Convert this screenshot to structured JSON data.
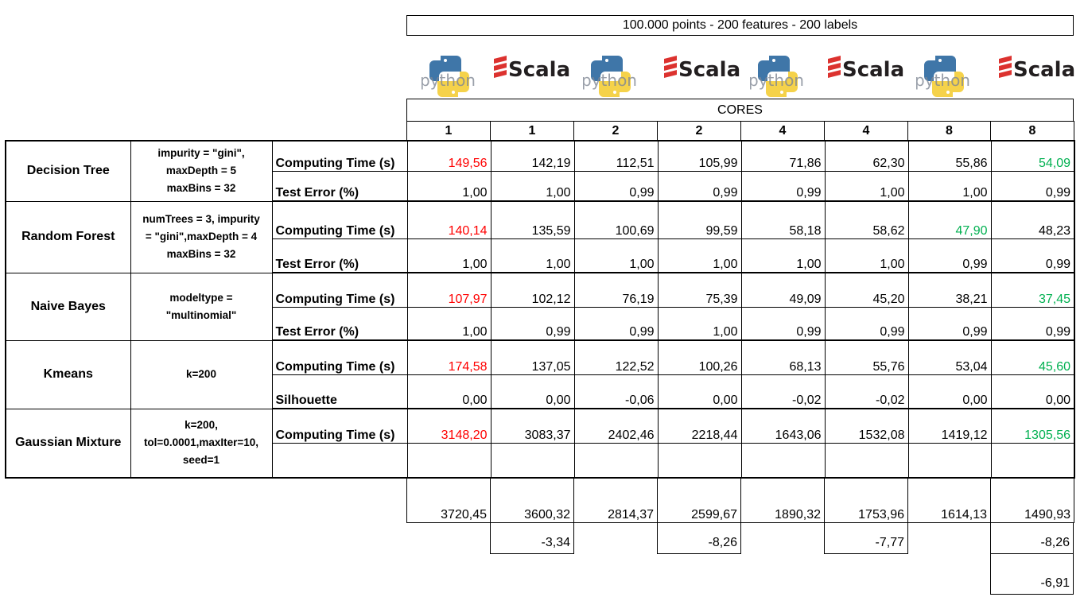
{
  "title": "100.000 points - 200 features - 200 labels",
  "logos": [
    {
      "icon": "python-logo",
      "text": "python"
    },
    {
      "icon": "scala-logo",
      "text": "Scala"
    },
    {
      "icon": "python-logo",
      "text": "python"
    },
    {
      "icon": "scala-logo",
      "text": "Scala"
    },
    {
      "icon": "python-logo",
      "text": "python"
    },
    {
      "icon": "scala-logo",
      "text": "Scala"
    },
    {
      "icon": "python-logo",
      "text": "python"
    },
    {
      "icon": "scala-logo",
      "text": "Scala"
    }
  ],
  "cores_label": "CORES",
  "cores": [
    "1",
    "1",
    "2",
    "2",
    "4",
    "4",
    "8",
    "8"
  ],
  "colors": {
    "slowest": "#ff0000",
    "fastest": "#00b050"
  },
  "algorithms": [
    {
      "name": "Decision Tree",
      "params": [
        "impurity = \"gini\",",
        "maxDepth = 5",
        "maxBins = 32"
      ],
      "rows": [
        {
          "metric": "Computing Time (s)",
          "values": [
            "149,56",
            "142,19",
            "112,51",
            "105,99",
            "71,86",
            "62,30",
            "55,86",
            "54,09"
          ],
          "red": 0,
          "green": 7
        },
        {
          "metric": "Test Error (%)",
          "values": [
            "1,00",
            "1,00",
            "0,99",
            "0,99",
            "0,99",
            "1,00",
            "1,00",
            "0,99"
          ]
        }
      ]
    },
    {
      "name": "Random Forest",
      "params": [
        "numTrees = 3, impurity",
        "= \"gini\",maxDepth = 4",
        "maxBins = 32"
      ],
      "rows": [
        {
          "metric": "Computing Time (s)",
          "values": [
            "140,14",
            "135,59",
            "100,69",
            "99,59",
            "58,18",
            "58,62",
            "47,90",
            "48,23"
          ],
          "red": 0,
          "green": 6
        },
        {
          "metric": "Test Error (%)",
          "values": [
            "1,00",
            "1,00",
            "1,00",
            "1,00",
            "1,00",
            "1,00",
            "0,99",
            "0,99"
          ]
        }
      ]
    },
    {
      "name": "Naive Bayes",
      "params": [
        "modeltype =",
        "\"multinomial\""
      ],
      "rows": [
        {
          "metric": "Computing Time (s)",
          "values": [
            "107,97",
            "102,12",
            "76,19",
            "75,39",
            "49,09",
            "45,20",
            "38,21",
            "37,45"
          ],
          "red": 0,
          "green": 7
        },
        {
          "metric": "Test Error (%)",
          "values": [
            "1,00",
            "0,99",
            "0,99",
            "1,00",
            "0,99",
            "0,99",
            "0,99",
            "0,99"
          ]
        }
      ]
    },
    {
      "name": "Kmeans",
      "params": [
        "k=200"
      ],
      "rows": [
        {
          "metric": "Computing Time (s)",
          "values": [
            "174,58",
            "137,05",
            "122,52",
            "100,26",
            "68,13",
            "55,76",
            "53,04",
            "45,60"
          ],
          "red": 0,
          "green": 7
        },
        {
          "metric": "Silhouette",
          "values": [
            "0,00",
            "0,00",
            "-0,06",
            "0,00",
            "-0,02",
            "-0,02",
            "0,00",
            "0,00"
          ]
        }
      ]
    },
    {
      "name": "Gaussian Mixture",
      "params": [
        "k=200,",
        "tol=0.0001,maxIter=10,",
        "seed=1"
      ],
      "rows": [
        {
          "metric": "Computing Time (s)",
          "values": [
            "3148,20",
            "3083,37",
            "2402,46",
            "2218,44",
            "1643,06",
            "1532,08",
            "1419,12",
            "1305,56"
          ],
          "red": 0,
          "green": 7
        },
        {
          "metric": "",
          "values": [
            "",
            "",
            "",
            "",
            "",
            "",
            "",
            ""
          ]
        }
      ]
    }
  ],
  "totals": [
    "3720,45",
    "3600,32",
    "2814,37",
    "2599,67",
    "1890,32",
    "1753,96",
    "1614,13",
    "1490,93"
  ],
  "differences": [
    "-3,34",
    "-8,26",
    "-7,77",
    "-8,26"
  ],
  "extra": "-6,91"
}
